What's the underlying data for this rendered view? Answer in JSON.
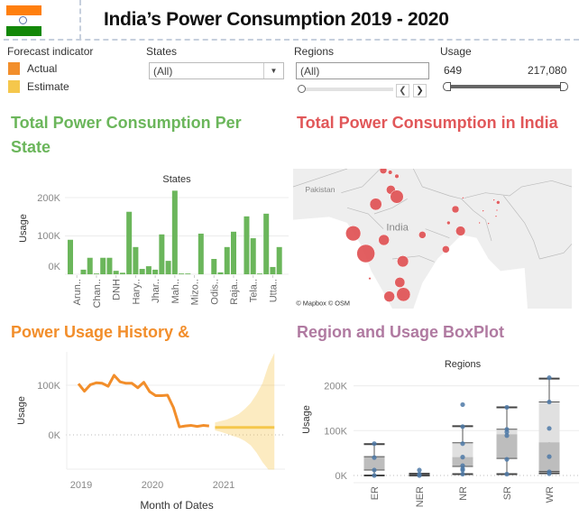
{
  "header": {
    "title": "India’s Power Consumption 2019 - 2020",
    "flag_colors": [
      "#ff7f0e",
      "#ffffff",
      "#138808"
    ]
  },
  "filters": {
    "forecast_indicator": {
      "label": "Forecast indicator",
      "items": [
        {
          "label": "Actual",
          "color": "#f28e2b"
        },
        {
          "label": "Estimate",
          "color": "#f5c74c"
        }
      ]
    },
    "states": {
      "label": "States",
      "value": "(All)"
    },
    "regions": {
      "label": "Regions",
      "value": "(All)"
    },
    "usage": {
      "label": "Usage",
      "min": "649",
      "max": "217,080"
    }
  },
  "sections": {
    "per_state": {
      "title": "Total Power Consumption Per State",
      "color": "#6bb65b"
    },
    "india": {
      "title": "Total Power Consumption in India",
      "color": "#e15759"
    },
    "history": {
      "title": "Power Usage History &",
      "color": "#f28e2b"
    },
    "boxplot": {
      "title": "Region and Usage BoxPlot",
      "color": "#b07aa1"
    }
  },
  "map": {
    "country_label": "India",
    "neighbor_label": "Pakistan",
    "attribution": "© Mapbox © OSM",
    "marker_color": "#e15759"
  },
  "chart_data": [
    {
      "type": "bar",
      "title": "States",
      "ylabel": "Usage",
      "color": "#6bb65b",
      "ylim": [
        0,
        230000
      ],
      "yticks": [
        "0K",
        "100K",
        "200K"
      ],
      "tick_labels": [
        "Arun..",
        "Chan..",
        "DNH",
        "Hary..",
        "Jhar..",
        "Mah..",
        "Mizo..",
        "Odis..",
        "Raja..",
        "Tela..",
        "Utta.."
      ],
      "values": [
        90000,
        0,
        12000,
        43000,
        2000,
        43000,
        43000,
        9000,
        4000,
        163000,
        71000,
        14000,
        21000,
        12000,
        104000,
        35000,
        218000,
        2000,
        2000,
        0,
        106000,
        0,
        40000,
        5000,
        71000,
        111000,
        0,
        151000,
        94000,
        2000,
        158000,
        19000,
        71000
      ]
    },
    {
      "type": "line",
      "xlabel": "Month of Dates",
      "ylabel": "Usage",
      "ylim": [
        -70000,
        165000
      ],
      "xticks": [
        "2019",
        "2020",
        "2021"
      ],
      "yticks": [
        "0K",
        "100K"
      ],
      "actual": {
        "name": "Actual",
        "color": "#f28e2b",
        "start": "2019-01",
        "values": [
          103000,
          88000,
          101000,
          105000,
          104000,
          98000,
          120000,
          107000,
          104000,
          104000,
          95000,
          106000,
          87000,
          79000,
          79000,
          80000,
          55000,
          16000,
          18000,
          19000,
          17000,
          19000,
          18000
        ]
      },
      "estimate": {
        "name": "Estimate",
        "color": "#f5c74c",
        "start": "2020-12",
        "values": [
          15000,
          15000,
          15000,
          15000,
          15000,
          15000,
          15000,
          15000,
          15000,
          15000,
          15000
        ],
        "upper": [
          25000,
          28000,
          31000,
          36000,
          42000,
          52000,
          64000,
          82000,
          104000,
          140000,
          170000
        ],
        "lower": [
          9000,
          6000,
          2000,
          -2000,
          -6000,
          -12000,
          -21000,
          -36000,
          -55000,
          -70000,
          -70000
        ]
      }
    },
    {
      "type": "box",
      "title": "Regions",
      "ylabel": "Usage",
      "ylim": [
        -15000,
        230000
      ],
      "yticks": [
        "0K",
        "100K",
        "200K"
      ],
      "categories": [
        "ER",
        "NER",
        "NR",
        "SR",
        "WR"
      ],
      "boxes": [
        {
          "min": 0,
          "q1": 12000,
          "median": 42000,
          "q3": 42000,
          "max": 70000,
          "points": [
            71000,
            40000,
            12000,
            0
          ]
        },
        {
          "min": 0,
          "q1": 1000,
          "median": 2000,
          "q3": 4000,
          "max": 4000,
          "points": [
            12000,
            3000,
            0
          ]
        },
        {
          "min": 3000,
          "q1": 20000,
          "median": 41000,
          "q3": 73000,
          "max": 110000,
          "points": [
            158000,
            109000,
            71000,
            41000,
            22000,
            15000,
            12000,
            3000
          ]
        },
        {
          "min": 3000,
          "q1": 38000,
          "median": 92000,
          "q3": 103000,
          "max": 152000,
          "points": [
            152000,
            103000,
            97000,
            89000,
            36000,
            3000
          ]
        },
        {
          "min": 5000,
          "q1": 9000,
          "median": 74000,
          "q3": 164000,
          "max": 216000,
          "points": [
            218000,
            164000,
            105000,
            42000,
            8000,
            4000
          ]
        }
      ]
    }
  ]
}
